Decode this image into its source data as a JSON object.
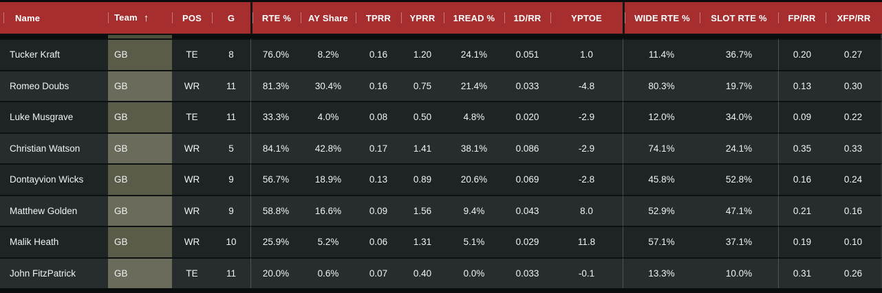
{
  "colors": {
    "header_background": "#a62e2e",
    "header_text": "#ffffff",
    "cell_text": "#f0f2f2",
    "page_background": "#0a0d0e",
    "row_dark": "#1e2424",
    "row_light": "#272c2f",
    "row_divider": "#0e1112",
    "group_divider": "#4d5456",
    "sorted_column_dark": "#5a5b49",
    "sorted_column_light": "#6a6b5a",
    "sorted_column_gap": "#4e503e"
  },
  "table": {
    "sort": {
      "column": "Team",
      "direction": "ascending",
      "icon": "up-arrow-icon",
      "glyph": "↑"
    },
    "columns": [
      {
        "key": "name",
        "label": "Name"
      },
      {
        "key": "team",
        "label": "Team",
        "sorted": "ascending"
      },
      {
        "key": "pos",
        "label": "POS"
      },
      {
        "key": "g",
        "label": "G"
      },
      {
        "key": "rte",
        "label": "RTE %"
      },
      {
        "key": "ay_share",
        "label": "AY Share"
      },
      {
        "key": "tprr",
        "label": "TPRR"
      },
      {
        "key": "yprr",
        "label": "YPRR"
      },
      {
        "key": "read1",
        "label": "1READ %"
      },
      {
        "key": "d1_rr",
        "label": "1D/RR"
      },
      {
        "key": "yptoe",
        "label": "YPTOE"
      },
      {
        "key": "wide_rte",
        "label": "WIDE RTE %"
      },
      {
        "key": "slot_rte",
        "label": "SLOT RTE %"
      },
      {
        "key": "fp_rr",
        "label": "FP/RR"
      },
      {
        "key": "xfp_rr",
        "label": "XFP/RR"
      }
    ],
    "rows": [
      {
        "cells": [
          "Tucker Kraft",
          "GB",
          "TE",
          "8",
          "76.0%",
          "8.2%",
          "0.16",
          "1.20",
          "24.1%",
          "0.051",
          "1.0",
          "11.4%",
          "36.7%",
          "0.20",
          "0.27"
        ]
      },
      {
        "cells": [
          "Romeo Doubs",
          "GB",
          "WR",
          "11",
          "81.3%",
          "30.4%",
          "0.16",
          "0.75",
          "21.4%",
          "0.033",
          "-4.8",
          "80.3%",
          "19.7%",
          "0.13",
          "0.30"
        ]
      },
      {
        "cells": [
          "Luke Musgrave",
          "GB",
          "TE",
          "11",
          "33.3%",
          "4.0%",
          "0.08",
          "0.50",
          "4.8%",
          "0.020",
          "-2.9",
          "12.0%",
          "34.0%",
          "0.09",
          "0.22"
        ]
      },
      {
        "cells": [
          "Christian Watson",
          "GB",
          "WR",
          "5",
          "84.1%",
          "42.8%",
          "0.17",
          "1.41",
          "38.1%",
          "0.086",
          "-2.9",
          "74.1%",
          "24.1%",
          "0.35",
          "0.33"
        ]
      },
      {
        "cells": [
          "Dontayvion Wicks",
          "GB",
          "WR",
          "9",
          "56.7%",
          "18.9%",
          "0.13",
          "0.89",
          "20.6%",
          "0.069",
          "-2.8",
          "45.8%",
          "52.8%",
          "0.16",
          "0.24"
        ]
      },
      {
        "cells": [
          "Matthew Golden",
          "GB",
          "WR",
          "9",
          "58.8%",
          "16.6%",
          "0.09",
          "1.56",
          "9.4%",
          "0.043",
          "8.0",
          "52.9%",
          "47.1%",
          "0.21",
          "0.16"
        ]
      },
      {
        "cells": [
          "Malik Heath",
          "GB",
          "WR",
          "10",
          "25.9%",
          "5.2%",
          "0.06",
          "1.31",
          "5.1%",
          "0.029",
          "11.8",
          "57.1%",
          "37.1%",
          "0.19",
          "0.10"
        ]
      },
      {
        "cells": [
          "John FitzPatrick",
          "GB",
          "TE",
          "11",
          "20.0%",
          "0.6%",
          "0.07",
          "0.40",
          "0.0%",
          "0.033",
          "-0.1",
          "13.3%",
          "10.0%",
          "0.31",
          "0.26"
        ]
      }
    ]
  }
}
